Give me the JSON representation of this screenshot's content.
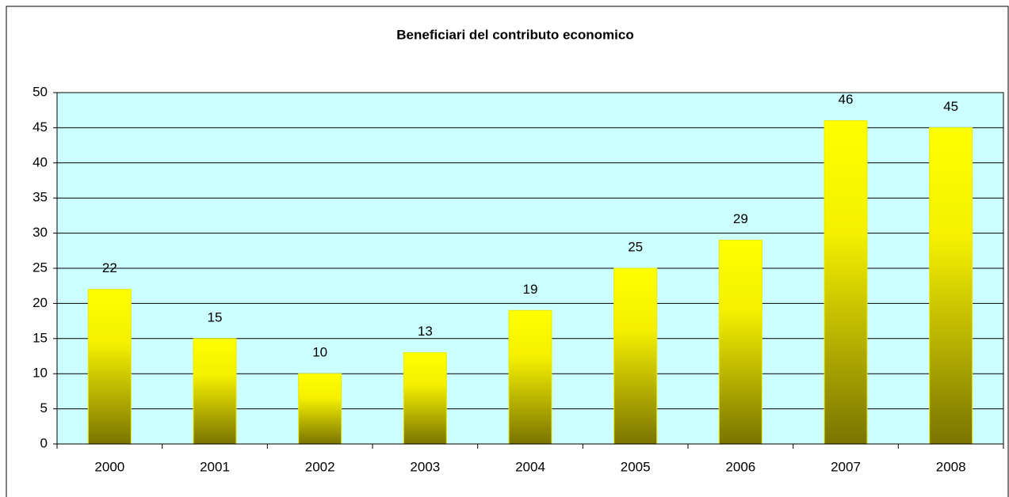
{
  "chart_data": {
    "type": "bar",
    "title": "Beneficiari del contributo economico",
    "categories": [
      "2000",
      "2001",
      "2002",
      "2003",
      "2004",
      "2005",
      "2006",
      "2007",
      "2008"
    ],
    "values": [
      22,
      15,
      10,
      13,
      19,
      25,
      29,
      46,
      45
    ],
    "color": "#ffff00",
    "plot_background": "#ccffff",
    "ylim": [
      0,
      50
    ],
    "yticks": [
      0,
      5,
      10,
      15,
      20,
      25,
      30,
      35,
      40,
      45,
      50
    ],
    "grid": true
  }
}
